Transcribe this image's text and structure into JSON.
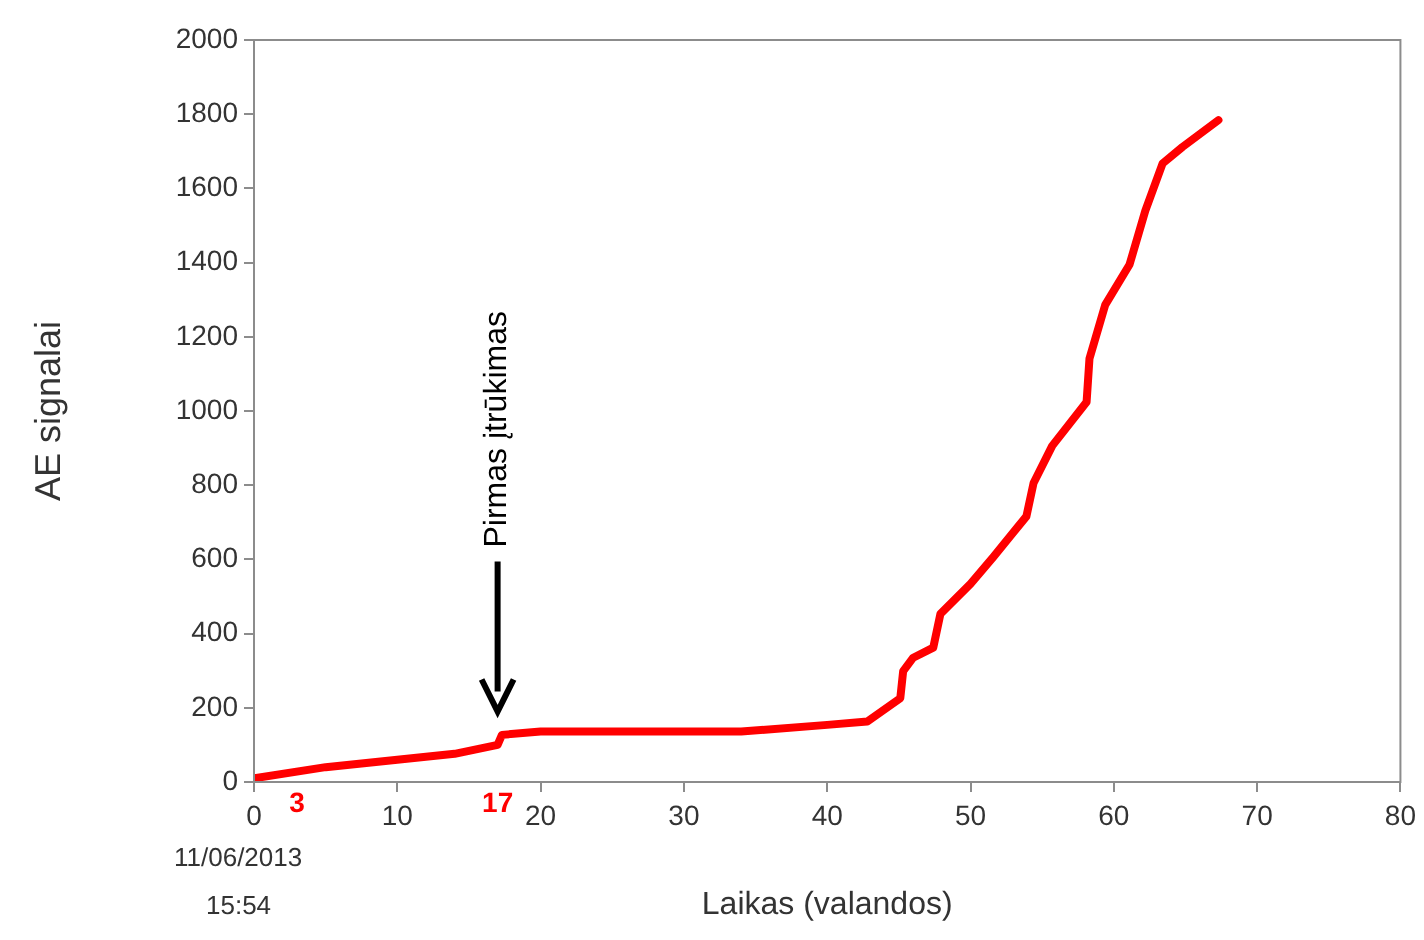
{
  "chart_data": {
    "type": "line",
    "xlabel": "Laikas (valandos)",
    "ylabel": "AE signalai",
    "x": [
      0,
      5,
      10,
      14,
      17,
      17.3,
      20,
      34,
      40,
      42.8,
      45.1,
      45.3,
      46.0,
      47.4,
      47.9,
      50.0,
      51.6,
      53.9,
      54.4,
      55.7,
      58.1,
      58.3,
      59.4,
      61.1,
      62.2,
      63.4,
      64.8,
      67.3
    ],
    "series": [
      {
        "color": "#ff0000",
        "values": [
          10,
          40,
          60,
          76,
          100,
          127,
          136,
          136,
          154,
          163,
          226,
          299,
          335,
          362,
          453,
          534,
          607,
          716,
          806,
          906,
          1024,
          1141,
          1286,
          1395,
          1540,
          1667,
          1712,
          1784
        ]
      }
    ],
    "xlim": [
      0,
      80
    ],
    "xticks": [
      0,
      10,
      20,
      30,
      40,
      50,
      60,
      70,
      80
    ],
    "ylim": [
      0,
      2000
    ],
    "yticks": [
      0,
      200,
      400,
      600,
      800,
      1000,
      1200,
      1400,
      1600,
      1800,
      2000
    ],
    "grid": false,
    "legend": false,
    "marker": "none",
    "line_style": "solid",
    "annotations": [
      "Pirmas įtrūkimas",
      "3",
      "17",
      "11/06/2013 15:54"
    ]
  }
}
